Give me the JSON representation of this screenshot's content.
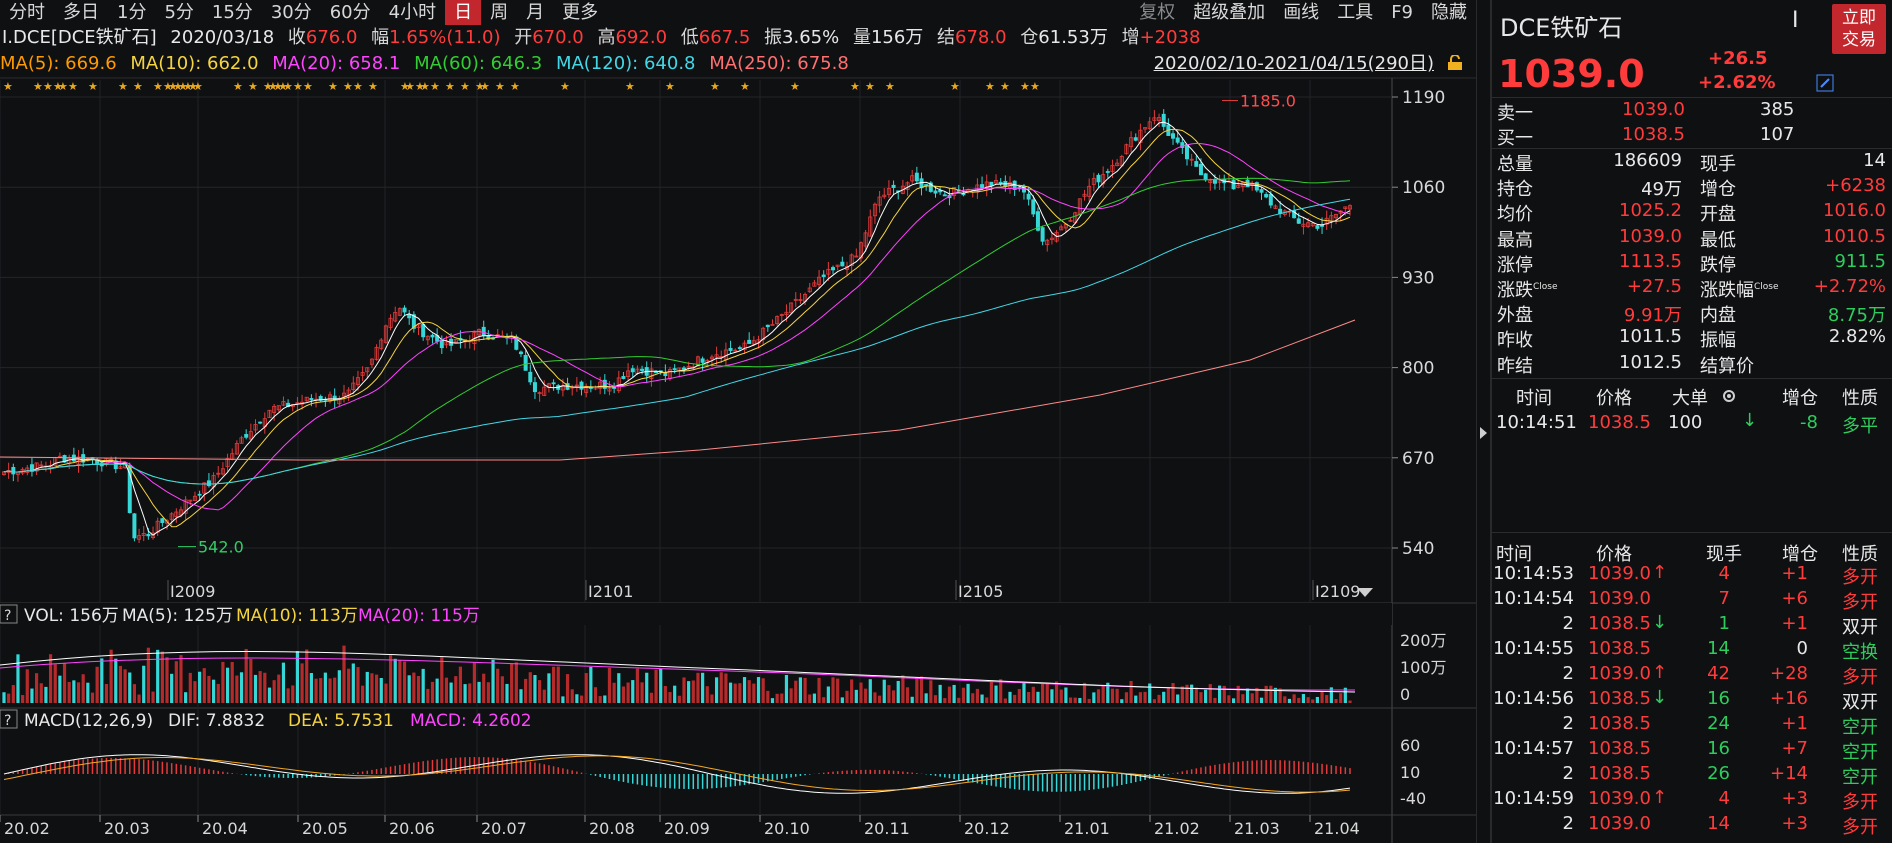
{
  "toolbar": {
    "timeframes": [
      "分时",
      "多日",
      "1分",
      "5分",
      "15分",
      "30分",
      "60分",
      "4小时",
      "日",
      "周",
      "月",
      "更多"
    ],
    "active": "日",
    "right": [
      "复权",
      "超级叠加",
      "画线",
      "工具",
      "F9",
      "隐藏"
    ]
  },
  "infobar": {
    "symbol": "I.DCE[DCE铁矿石]",
    "date": "2020/03/18",
    "close_label": "收",
    "close": "676.0",
    "chg_label": "幅",
    "chg": "1.65%(11.0)",
    "open_label": "开",
    "open": "670.0",
    "high_label": "高",
    "high": "692.0",
    "low_label": "低",
    "low": "667.5",
    "amp_label": "振",
    "amp": "3.65%",
    "vol_label": "量",
    "vol": "156万",
    "settle_label": "结",
    "settle": "678.0",
    "oi_label": "仓",
    "oi": "61.53万",
    "inc_label": "增",
    "inc": "+2038"
  },
  "ma_bar": {
    "ma5": "MA(5): 669.6",
    "ma10": "MA(10): 662.0",
    "ma20": "MA(20): 658.1",
    "ma60": "MA(60): 646.3",
    "ma120": "MA(120): 640.8",
    "ma250": "MA(250): 675.8",
    "date_range": "2020/02/10-2021/04/15(290日)"
  },
  "chart_data": {
    "type": "candlestick",
    "price_axis_ticks": [
      "1190",
      "1060",
      "930",
      "800",
      "670",
      "540"
    ],
    "price_axis_values": [
      1190,
      1060,
      930,
      800,
      670,
      540
    ],
    "annotations": [
      {
        "label": "1185.0",
        "value": 1185.0
      },
      {
        "label": "542.0",
        "value": 542.0
      }
    ],
    "contract_labels": [
      "I2009",
      "I2101",
      "I2105",
      "I2109"
    ],
    "month_labels": [
      "20.02",
      "20.03",
      "20.04",
      "20.05",
      "20.06",
      "20.07",
      "20.08",
      "20.09",
      "20.10",
      "20.11",
      "20.12",
      "21.01",
      "21.02",
      "21.03",
      "21.04"
    ],
    "ylim": [
      520,
      1200
    ],
    "volume_axis_ticks": [
      "200万",
      "100万",
      "0"
    ],
    "macd_axis_ticks": [
      "60",
      "10",
      "-40"
    ]
  },
  "volume_bar": {
    "help": "?",
    "vol": "VOL: 156万",
    "ma5": "MA(5): 125万",
    "ma10": "MA(10): 113万",
    "ma20": "MA(20): 115万"
  },
  "macd_bar": {
    "help": "?",
    "label": "MACD(12,26,9)",
    "dif": "DIF: 7.8832",
    "dea": "DEA: 5.7531",
    "macd": "MACD: 4.2602"
  },
  "quote": {
    "name": "DCE铁矿石",
    "price": "1039.0",
    "change": "+26.5",
    "change_pct": "+2.62%",
    "trade_button": [
      "立即",
      "交易"
    ],
    "sell1_label": "卖一",
    "sell1_price": "1039.0",
    "sell1_vol": "385",
    "buy1_label": "买一",
    "buy1_price": "1038.5",
    "buy1_vol": "107",
    "stats_left": [
      {
        "label": "总量",
        "value": "186609",
        "color": "w"
      },
      {
        "label": "持仓",
        "value": "49万",
        "color": "w"
      },
      {
        "label": "均价",
        "value": "1025.2",
        "color": "r"
      },
      {
        "label": "最高",
        "value": "1039.0",
        "color": "r"
      },
      {
        "label": "涨停",
        "value": "1113.5",
        "color": "r"
      },
      {
        "label": "涨跌",
        "sup": "Close",
        "value": "+27.5",
        "color": "r"
      },
      {
        "label": "外盘",
        "value": "9.91万",
        "color": "r"
      },
      {
        "label": "昨收",
        "value": "1011.5",
        "color": "w"
      },
      {
        "label": "昨结",
        "value": "1012.5",
        "color": "w"
      }
    ],
    "stats_right": [
      {
        "label": "现手",
        "value": "14",
        "color": "w"
      },
      {
        "label": "增仓",
        "value": "+6238",
        "color": "r"
      },
      {
        "label": "开盘",
        "value": "1016.0",
        "color": "r"
      },
      {
        "label": "最低",
        "value": "1010.5",
        "color": "r"
      },
      {
        "label": "跌停",
        "value": "911.5",
        "color": "g"
      },
      {
        "label": "涨跌幅",
        "sup": "Close",
        "value": "+2.72%",
        "color": "r"
      },
      {
        "label": "内盘",
        "value": "8.75万",
        "color": "g"
      },
      {
        "label": "振幅",
        "value": "2.82%",
        "color": "w"
      },
      {
        "label": "结算价",
        "value": "",
        "color": "w"
      }
    ],
    "bigorder_header": [
      "时间",
      "价格",
      "大单",
      "增仓",
      "性质"
    ],
    "bigorder_row": {
      "time": "10:14:51",
      "price": "1038.5",
      "vol": "100",
      "arrow": "↓",
      "inc": "-8",
      "nature": "多平"
    },
    "ticks_header": [
      "时间",
      "价格",
      "现手",
      "增仓",
      "性质"
    ],
    "ticks": [
      {
        "time": "10:14:53",
        "price": "1039.0",
        "pc": "r",
        "arrow": "↑",
        "vol": "4",
        "vc": "r",
        "inc": "+1",
        "ic": "r",
        "nature": "多开",
        "nc": "r"
      },
      {
        "time": "10:14:54",
        "price": "1039.0",
        "pc": "r",
        "arrow": "",
        "vol": "7",
        "vc": "r",
        "inc": "+6",
        "ic": "r",
        "nature": "多开",
        "nc": "r"
      },
      {
        "time": "2",
        "price": "1038.5",
        "pc": "r",
        "arrow": "↓",
        "vol": "1",
        "vc": "g",
        "inc": "+1",
        "ic": "r",
        "nature": "双开",
        "nc": "w"
      },
      {
        "time": "10:14:55",
        "price": "1038.5",
        "pc": "r",
        "arrow": "",
        "vol": "14",
        "vc": "g",
        "inc": "0",
        "ic": "w",
        "nature": "空换",
        "nc": "g"
      },
      {
        "time": "2",
        "price": "1039.0",
        "pc": "r",
        "arrow": "↑",
        "vol": "42",
        "vc": "r",
        "inc": "+28",
        "ic": "r",
        "nature": "多开",
        "nc": "r"
      },
      {
        "time": "10:14:56",
        "price": "1038.5",
        "pc": "r",
        "arrow": "↓",
        "vol": "16",
        "vc": "g",
        "inc": "+16",
        "ic": "r",
        "nature": "双开",
        "nc": "w"
      },
      {
        "time": "2",
        "price": "1038.5",
        "pc": "r",
        "arrow": "",
        "vol": "24",
        "vc": "g",
        "inc": "+1",
        "ic": "r",
        "nature": "空开",
        "nc": "g"
      },
      {
        "time": "10:14:57",
        "price": "1038.5",
        "pc": "r",
        "arrow": "",
        "vol": "16",
        "vc": "g",
        "inc": "+7",
        "ic": "r",
        "nature": "空开",
        "nc": "g"
      },
      {
        "time": "2",
        "price": "1038.5",
        "pc": "r",
        "arrow": "",
        "vol": "26",
        "vc": "g",
        "inc": "+14",
        "ic": "r",
        "nature": "空开",
        "nc": "g"
      },
      {
        "time": "10:14:59",
        "price": "1039.0",
        "pc": "r",
        "arrow": "↑",
        "vol": "4",
        "vc": "r",
        "inc": "+3",
        "ic": "r",
        "nature": "多开",
        "nc": "r"
      },
      {
        "time": "2",
        "price": "1039.0",
        "pc": "r",
        "arrow": "",
        "vol": "14",
        "vc": "r",
        "inc": "+3",
        "ic": "r",
        "nature": "多开",
        "nc": "r"
      }
    ]
  }
}
